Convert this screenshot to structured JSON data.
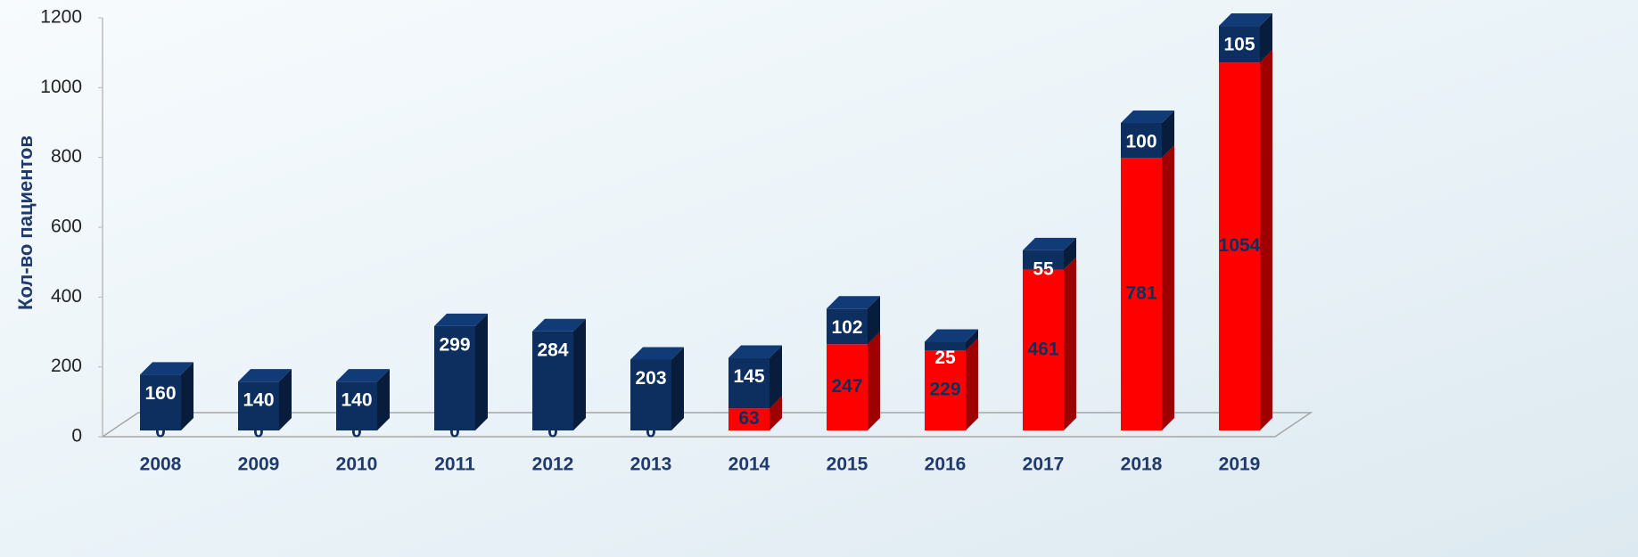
{
  "chart_data": {
    "type": "stacked-bar-3d",
    "y_label": "Кол-во пациентов",
    "categories": [
      "2008",
      "2009",
      "2010",
      "2011",
      "2012",
      "2013",
      "2014",
      "2015",
      "2016",
      "2017",
      "2018",
      "2019"
    ],
    "series": [
      {
        "color": "#ff0000",
        "label_color": "#0d2f5f",
        "values": [
          0,
          0,
          0,
          0,
          0,
          0,
          63,
          247,
          229,
          461,
          781,
          1054
        ]
      },
      {
        "color": "#0d2f5f",
        "label_color": "#ffffff",
        "values": [
          160,
          140,
          140,
          299,
          284,
          203,
          145,
          102,
          25,
          55,
          100,
          105
        ]
      }
    ],
    "ylim": [
      0,
      1200
    ],
    "yticks": [
      0,
      200,
      400,
      600,
      800,
      1000,
      1200
    ]
  }
}
